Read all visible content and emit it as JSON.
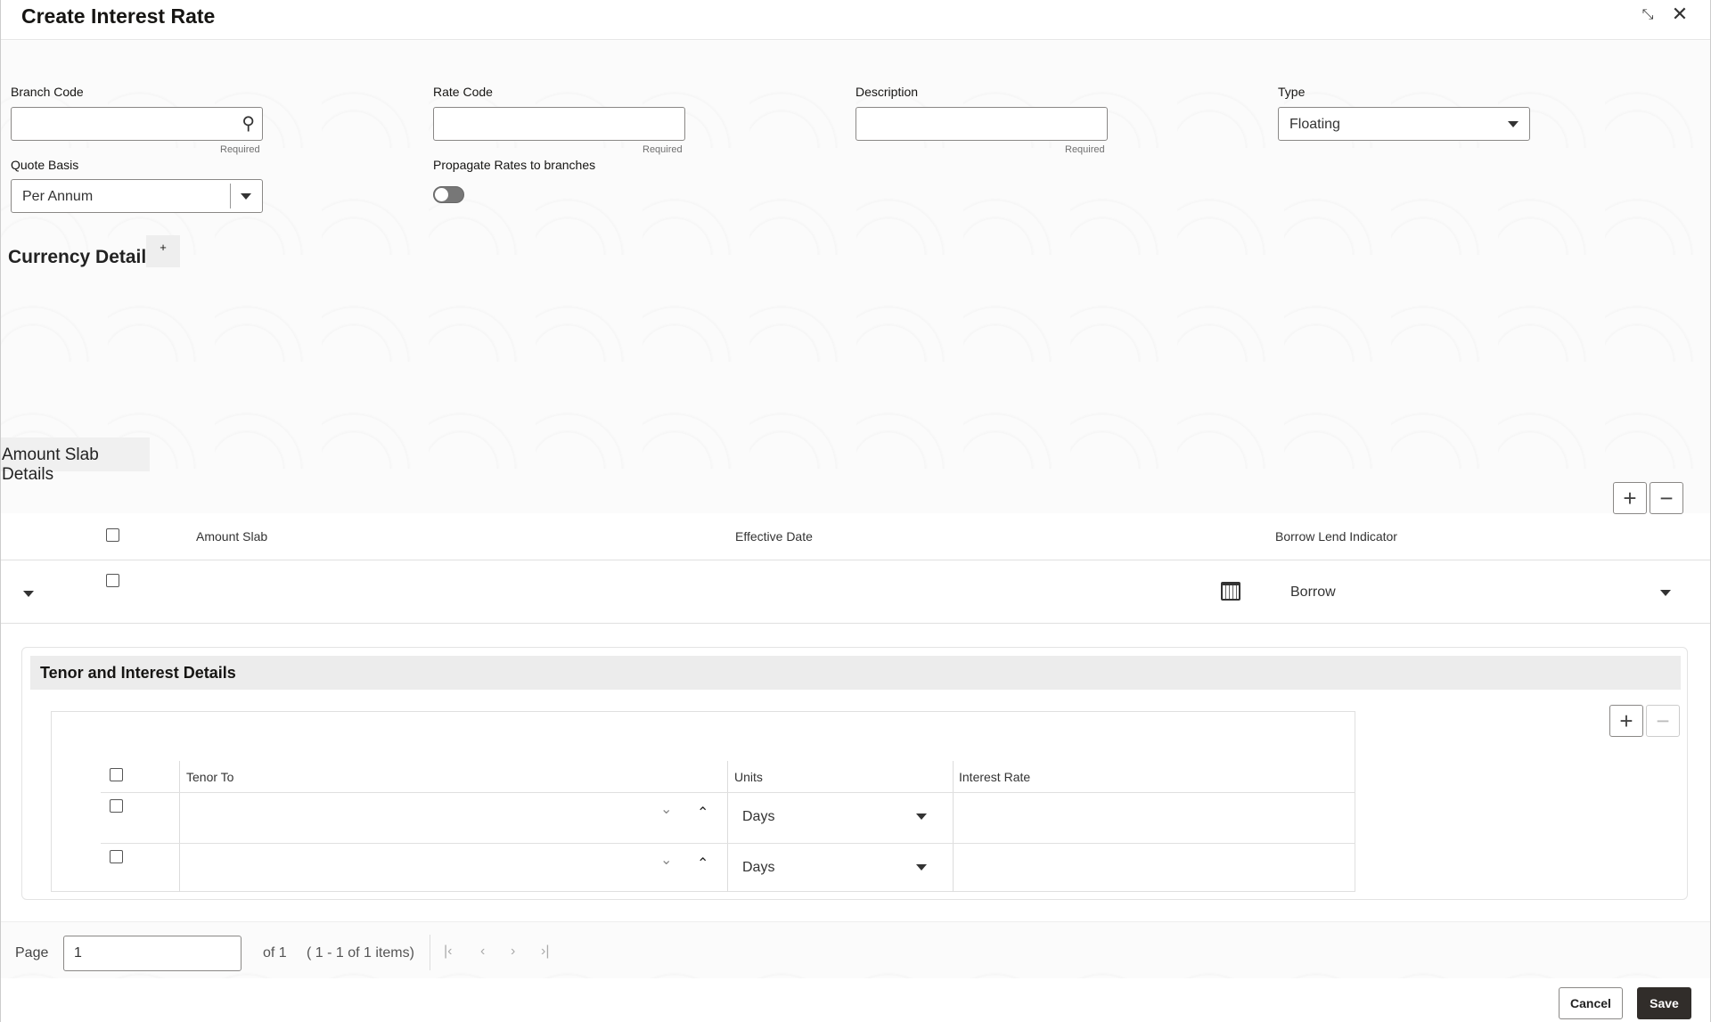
{
  "header": {
    "title": "Create Interest Rate",
    "icons": [
      "compress-icon",
      "close-icon"
    ]
  },
  "form": {
    "branch_code": {
      "label": "Branch Code",
      "value": "",
      "hint": "Required"
    },
    "rate_code": {
      "label": "Rate Code",
      "value": "",
      "hint": "Required"
    },
    "description": {
      "label": "Description",
      "value": "",
      "hint": "Required"
    },
    "type": {
      "label": "Type",
      "value": "Floating"
    },
    "quote_basis": {
      "label": "Quote Basis",
      "value": "Per Annum"
    },
    "propagate": {
      "label": "Propagate Rates to branches",
      "on": false
    }
  },
  "currency": {
    "title": "Currency Details",
    "add": "+"
  },
  "amount_slab": {
    "title": "Amount Slab Details",
    "columns": [
      "Amount Slab",
      "Effective Date",
      "Borrow Lend Indicator"
    ],
    "rows": [
      {
        "amount_slab": "",
        "effective_date": "",
        "borrow_lend": "Borrow"
      }
    ]
  },
  "tenor": {
    "title": "Tenor and Interest Details",
    "columns": [
      "Tenor To",
      "Units",
      "Interest Rate"
    ],
    "rows": [
      {
        "tenor_to": "",
        "units": "Days",
        "interest_rate": ""
      },
      {
        "tenor_to": "",
        "units": "Days",
        "interest_rate": ""
      }
    ]
  },
  "pagination": {
    "page_label": "Page",
    "page": "1",
    "of": "of 1",
    "items": "( 1 - 1 of 1 items)"
  },
  "footer": {
    "cancel": "Cancel",
    "save": "Save"
  }
}
